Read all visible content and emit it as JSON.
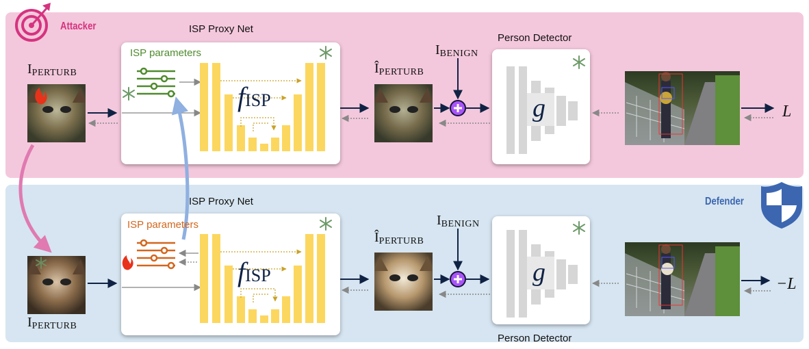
{
  "top": {
    "role_label": "Attacker",
    "proxy_title": "ISP Proxy Net",
    "params_label": "ISP parameters",
    "input_label_main": "I",
    "input_label_sub": "PERTURB",
    "output_label_main": "Î",
    "output_label_sub": "PERTURB",
    "benign_label_main": "I",
    "benign_label_sub": "BENIGN",
    "detector_title": "Person Detector",
    "loss_label": "L",
    "accent_color": "#d6337f",
    "params_color": "#4f8a2e"
  },
  "bottom": {
    "role_label": "Defender",
    "proxy_title": "ISP Proxy Net",
    "params_label": "ISP parameters",
    "input_label_main": "I",
    "input_label_sub": "PERTURB",
    "output_label_main": "Î",
    "output_label_sub": "PERTURB",
    "benign_label_main": "I",
    "benign_label_sub": "BENIGN",
    "detector_title": "Person Detector",
    "loss_label": "−L",
    "accent_color": "#3c66b0",
    "params_color": "#d2661c"
  },
  "network": {
    "fisp_main": "f",
    "fisp_sub": "ISP",
    "detector_func": "g"
  },
  "icons": {
    "frozen": "snowflake-icon",
    "trainable": "fire-icon",
    "attacker": "target-icon",
    "defender": "shield-icon",
    "combine": "plus-circle-icon"
  }
}
